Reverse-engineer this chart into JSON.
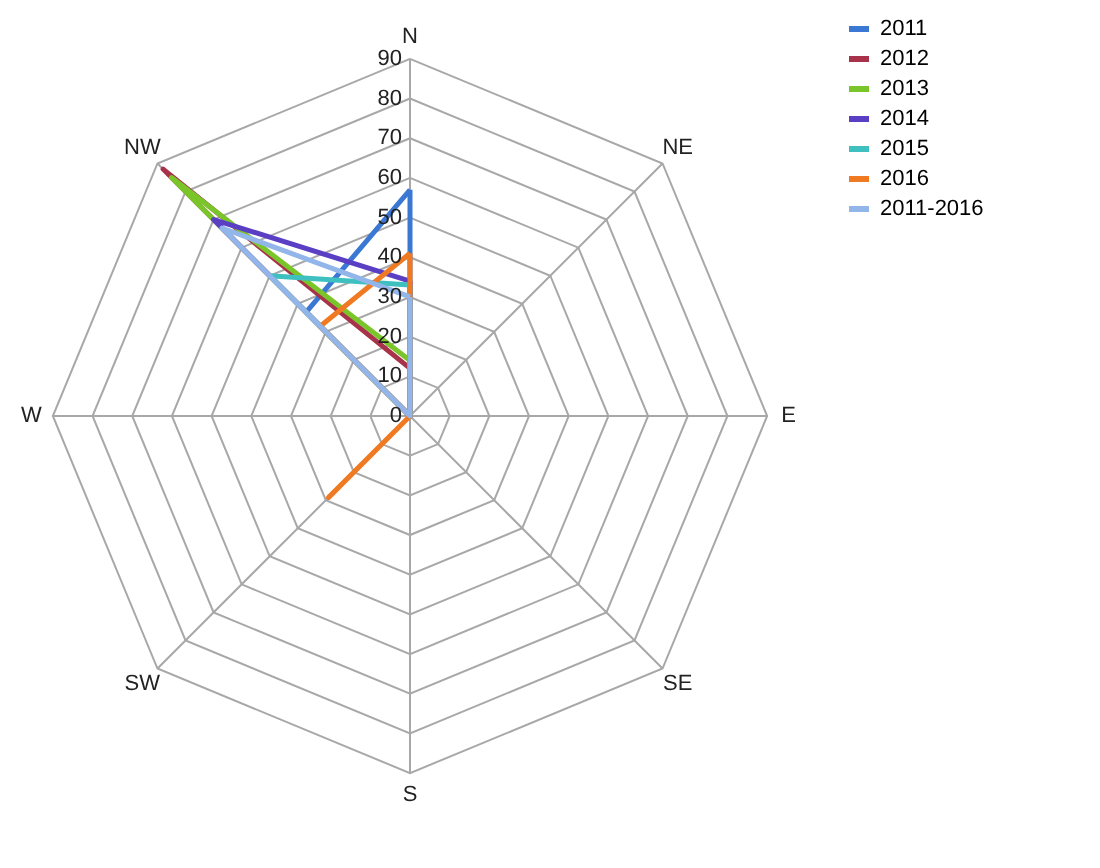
{
  "chart_data": {
    "type": "radar",
    "categories": [
      "N",
      "NE",
      "E",
      "SE",
      "S",
      "SW",
      "W",
      "NW"
    ],
    "ylim": [
      0,
      90
    ],
    "yticks": [
      0,
      10,
      20,
      30,
      40,
      50,
      60,
      70,
      80,
      90
    ],
    "grid": true,
    "legend": "right",
    "marker": "none",
    "line_style": "solid",
    "series": [
      {
        "name": "2011",
        "color": "#3a78d4",
        "values": [
          57,
          0,
          0,
          0,
          0,
          0,
          0,
          37
        ]
      },
      {
        "name": "2012",
        "color": "#a8324a",
        "values": [
          12,
          0,
          0,
          0,
          0,
          0,
          0,
          88
        ]
      },
      {
        "name": "2013",
        "color": "#7ac52a",
        "values": [
          14,
          0,
          0,
          0,
          0,
          0,
          0,
          85
        ]
      },
      {
        "name": "2014",
        "color": "#5a3fc4",
        "values": [
          34,
          0,
          0,
          0,
          0,
          0,
          0,
          70
        ]
      },
      {
        "name": "2015",
        "color": "#3ec0c0",
        "values": [
          33,
          0,
          0,
          0,
          0,
          0,
          0,
          50
        ]
      },
      {
        "name": "2016",
        "color": "#f07a22",
        "values": [
          41,
          0,
          0,
          0,
          0,
          29,
          0,
          32
        ]
      },
      {
        "name": "2011-2016",
        "color": "#92b6ea",
        "values": [
          30,
          0,
          0,
          0,
          0,
          0,
          0,
          67
        ]
      }
    ]
  }
}
